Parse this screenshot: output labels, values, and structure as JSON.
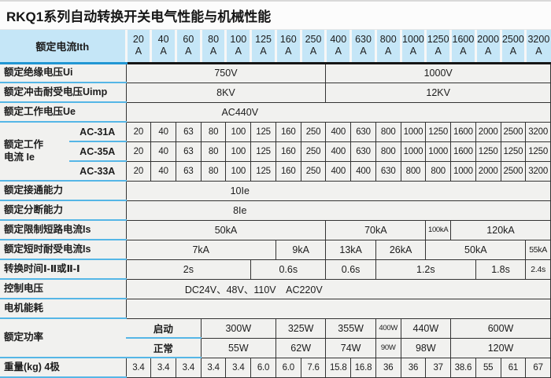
{
  "title": "RKQ1系列自动转换开关电气性能与机械性能",
  "colors": {
    "page_bg": "#f1f1ef",
    "title_bg": "#fcfcfc",
    "header_bg": "#c5e6f7",
    "header_label_line": "#2196d3",
    "label_line": "#55b6e6",
    "grid": "#333333",
    "text": "#1c1c1c"
  },
  "chart_data": {
    "type": "table",
    "title": "RKQ1系列自动转换开关电气性能与机械性能",
    "columns": [
      "20A",
      "40A",
      "60A",
      "80A",
      "100A",
      "125A",
      "160A",
      "250A",
      "400A",
      "630A",
      "800A",
      "1000A",
      "1250A",
      "1600A",
      "2000A",
      "2500A",
      "3200A"
    ],
    "rows": {
      "额定绝缘电压Ui": [
        "750V (20A-250A)",
        "1000V (400A-3200A)"
      ],
      "额定冲击耐受电压Uimp": [
        "8KV (20A-250A)",
        "12KV (400A-3200A)"
      ],
      "额定工作电压Ue": "AC440V",
      "额定工作电流Ie AC-31A": [
        20,
        40,
        63,
        80,
        100,
        125,
        160,
        250,
        400,
        630,
        800,
        1000,
        1250,
        1600,
        2000,
        2500,
        3200
      ],
      "额定工作电流Ie AC-35A": [
        20,
        40,
        63,
        80,
        100,
        125,
        160,
        250,
        400,
        630,
        800,
        1000,
        1000,
        1600,
        1250,
        1250,
        1250
      ],
      "额定工作电流Ie AC-33A": [
        20,
        40,
        63,
        80,
        100,
        125,
        160,
        250,
        400,
        400,
        630,
        800,
        800,
        1000,
        2000,
        2500,
        3200
      ],
      "额定接通能力": "10Ie",
      "额定分断能力": "8Ie",
      "额定限制短路电流Is": [
        "50kA",
        "70kA",
        "100kA",
        "120kA"
      ],
      "额定短时耐受电流Is": [
        "7kA",
        "9kA",
        "13kA",
        "26kA",
        "50kA",
        "55kA"
      ],
      "转换时间Ⅰ-Ⅱ或Ⅱ-Ⅰ": [
        "2s",
        "0.6s",
        "0.6s",
        "1.2s",
        "1.8s",
        "2.4s"
      ],
      "控制电压": "DC24V、48V、110V AC220V",
      "额定功率 启动": [
        "300W",
        "325W",
        "355W",
        "400W",
        "440W",
        "600W"
      ],
      "额定功率 正常": [
        "55W",
        "62W",
        "74W",
        "90W",
        "98W",
        "120W"
      ],
      "重量(kg) 4极": [
        3.4,
        3.4,
        3.4,
        3.4,
        3.4,
        6.0,
        6.0,
        7.6,
        15.8,
        16.8,
        36,
        36,
        37,
        38.6,
        55,
        61,
        67
      ]
    }
  },
  "table": {
    "header": {
      "label": "额定电流Ith",
      "unit": "A",
      "currents": [
        "20",
        "40",
        "60",
        "80",
        "100",
        "125",
        "160",
        "250",
        "400",
        "630",
        "800",
        "1000",
        "1250",
        "1600",
        "2000",
        "2500",
        "3200"
      ]
    },
    "rows": [
      {
        "cells": [
          {
            "t": "额定绝缘电压Ui",
            "type": "lbl",
            "cs": 2
          },
          {
            "t": "750V",
            "cs": 8,
            "cls": "m"
          },
          {
            "t": "1000V",
            "cs": 9,
            "cls": "m"
          }
        ]
      },
      {
        "cells": [
          {
            "t": "额定冲击耐受电压Uimp",
            "type": "lbl",
            "cs": 2
          },
          {
            "t": "8KV",
            "cs": 8,
            "cls": "m"
          },
          {
            "t": "12KV",
            "cs": 9,
            "cls": "m"
          }
        ]
      },
      {
        "cells": [
          {
            "t": "额定工作电压Ue",
            "type": "lbl",
            "cs": 2
          },
          {
            "t": "AC440V",
            "cs": 17,
            "cls": "m offL"
          }
        ]
      },
      {
        "cells": [
          {
            "t": "额定工作\n电流 Ie",
            "type": "lbl",
            "rs": 3
          },
          {
            "t": "AC-31A",
            "type": "sub"
          },
          {
            "t": "20"
          },
          {
            "t": "40"
          },
          {
            "t": "63"
          },
          {
            "t": "80"
          },
          {
            "t": "100"
          },
          {
            "t": "125"
          },
          {
            "t": "160"
          },
          {
            "t": "250"
          },
          {
            "t": "400"
          },
          {
            "t": "630"
          },
          {
            "t": "800"
          },
          {
            "t": "1000"
          },
          {
            "t": "1250"
          },
          {
            "t": "1600"
          },
          {
            "t": "2000"
          },
          {
            "t": "2500"
          },
          {
            "t": "3200"
          }
        ]
      },
      {
        "cells": [
          {
            "t": "AC-35A",
            "type": "sub"
          },
          {
            "t": "20"
          },
          {
            "t": "40"
          },
          {
            "t": "63"
          },
          {
            "t": "80"
          },
          {
            "t": "100"
          },
          {
            "t": "125"
          },
          {
            "t": "160"
          },
          {
            "t": "250"
          },
          {
            "t": "400"
          },
          {
            "t": "630"
          },
          {
            "t": "800"
          },
          {
            "t": "1000"
          },
          {
            "t": "1000"
          },
          {
            "t": "1600"
          },
          {
            "t": "1250"
          },
          {
            "t": "1250"
          },
          {
            "t": "1250"
          }
        ]
      },
      {
        "cells": [
          {
            "t": "AC-33A",
            "type": "sub"
          },
          {
            "t": "20"
          },
          {
            "t": "40"
          },
          {
            "t": "63"
          },
          {
            "t": "80"
          },
          {
            "t": "100"
          },
          {
            "t": "125"
          },
          {
            "t": "160"
          },
          {
            "t": "250"
          },
          {
            "t": "400"
          },
          {
            "t": "400"
          },
          {
            "t": "630"
          },
          {
            "t": "800"
          },
          {
            "t": "800"
          },
          {
            "t": "1000"
          },
          {
            "t": "2000"
          },
          {
            "t": "2500"
          },
          {
            "t": "3200"
          }
        ]
      },
      {
        "cells": [
          {
            "t": "额定接通能力",
            "type": "lbl",
            "cs": 2
          },
          {
            "t": "10Ie",
            "cs": 17,
            "cls": "m offL"
          }
        ]
      },
      {
        "cells": [
          {
            "t": "额定分断能力",
            "type": "lbl",
            "cs": 2
          },
          {
            "t": "8Ie",
            "cs": 17,
            "cls": "m offL"
          }
        ]
      },
      {
        "cells": [
          {
            "t": "额定限制短路电流Is",
            "type": "lbl",
            "cs": 2
          },
          {
            "t": "50kA",
            "cs": 8,
            "cls": "m"
          },
          {
            "t": "70kA",
            "cs": 4,
            "cls": "m"
          },
          {
            "t": "100kA",
            "cs": 1,
            "cls": "sm"
          },
          {
            "t": "120kA",
            "cs": 4,
            "cls": "m"
          }
        ]
      },
      {
        "cells": [
          {
            "t": "额定短时耐受电流Is",
            "type": "lbl",
            "cs": 2
          },
          {
            "t": "7kA",
            "cs": 6,
            "cls": "m"
          },
          {
            "t": "9kA",
            "cs": 2,
            "cls": "m"
          },
          {
            "t": "13kA",
            "cs": 2,
            "cls": "m"
          },
          {
            "t": "26kA",
            "cs": 2,
            "cls": "m"
          },
          {
            "t": "50kA",
            "cs": 4,
            "cls": "m"
          },
          {
            "t": "55kA",
            "cs": 1,
            "cls": "tight"
          }
        ]
      },
      {
        "cells": [
          {
            "t": "转换时间Ⅰ-Ⅱ或Ⅱ-Ⅰ",
            "type": "lbl",
            "cs": 2
          },
          {
            "t": "2s",
            "cs": 5,
            "cls": "m"
          },
          {
            "t": "0.6s",
            "cs": 3,
            "cls": "m"
          },
          {
            "t": "0.6s",
            "cs": 2,
            "cls": "m"
          },
          {
            "t": "1.2s",
            "cs": 4,
            "cls": "m"
          },
          {
            "t": "1.8s",
            "cs": 2,
            "cls": "m"
          },
          {
            "t": "2.4s",
            "cs": 1,
            "cls": "tight"
          }
        ]
      },
      {
        "cells": [
          {
            "t": "控制电压",
            "type": "lbl",
            "cs": 2
          },
          {
            "t": "DC24V、48V、110V　AC220V",
            "cs": 17,
            "cls": "m ctrl"
          }
        ]
      },
      {
        "cells": [
          {
            "t": "电机能耗",
            "type": "lbl",
            "cs": 2
          },
          {
            "t": "",
            "cs": 17,
            "cls": "m"
          }
        ]
      },
      {
        "cells": [
          {
            "t": "额定功率",
            "type": "lbl",
            "cs": 2,
            "rs": 2
          },
          {
            "t": "启动",
            "type": "subd",
            "cs": 3
          },
          {
            "t": "300W",
            "cs": 3,
            "cls": "m"
          },
          {
            "t": "325W",
            "cs": 2,
            "cls": "m"
          },
          {
            "t": "355W",
            "cs": 2,
            "cls": "m"
          },
          {
            "t": "400W",
            "cs": 1,
            "cls": "sm"
          },
          {
            "t": "440W",
            "cs": 2,
            "cls": "m"
          },
          {
            "t": "600W",
            "cs": 4,
            "cls": "m"
          }
        ]
      },
      {
        "cells": [
          {
            "t": "正常",
            "type": "subd",
            "cs": 3
          },
          {
            "t": "55W",
            "cs": 3,
            "cls": "m"
          },
          {
            "t": "62W",
            "cs": 2,
            "cls": "m"
          },
          {
            "t": "74W",
            "cs": 2,
            "cls": "m"
          },
          {
            "t": "90W",
            "cs": 1,
            "cls": "sm"
          },
          {
            "t": "98W",
            "cs": 2,
            "cls": "m"
          },
          {
            "t": "120W",
            "cs": 4,
            "cls": "m"
          }
        ]
      },
      {
        "cells": [
          {
            "t": "重量(kg) 4极",
            "type": "lbl",
            "cs": 2
          },
          {
            "t": "3.4"
          },
          {
            "t": "3.4"
          },
          {
            "t": "3.4"
          },
          {
            "t": "3.4"
          },
          {
            "t": "3.4"
          },
          {
            "t": "6.0"
          },
          {
            "t": "6.0"
          },
          {
            "t": "7.6"
          },
          {
            "t": "15.8"
          },
          {
            "t": "16.8"
          },
          {
            "t": "36"
          },
          {
            "t": "36"
          },
          {
            "t": "37"
          },
          {
            "t": "38.6"
          },
          {
            "t": "55"
          },
          {
            "t": "61"
          },
          {
            "t": "67"
          }
        ]
      }
    ]
  }
}
